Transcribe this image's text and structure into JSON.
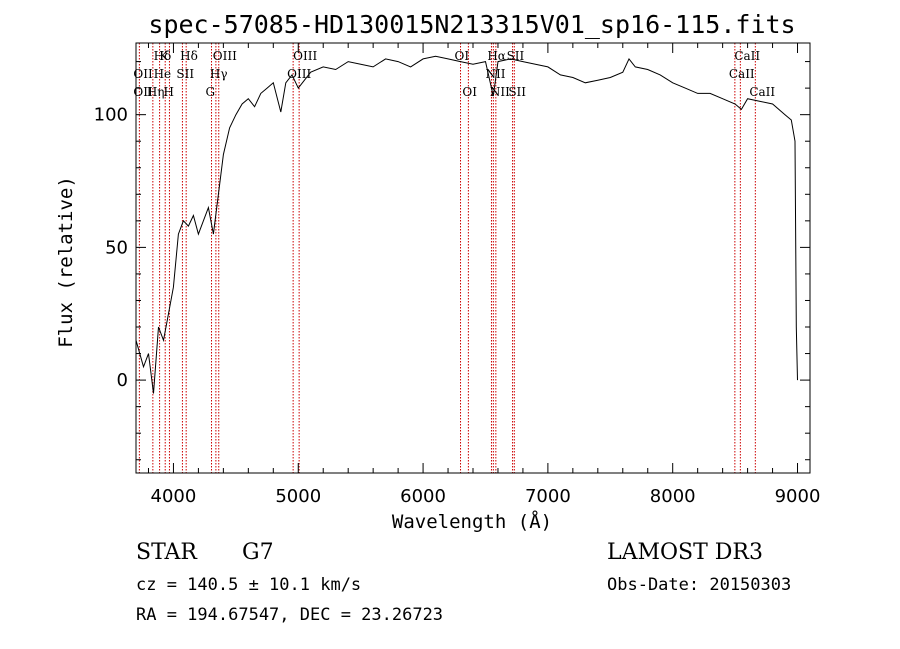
{
  "colors": {
    "axes": "#000000",
    "spectrum": "#000000",
    "lines": "#cc0000",
    "background": "#ffffff"
  },
  "chart_data": {
    "type": "line",
    "title": "spec-57085-HD130015N213315V01_sp16-115.fits",
    "xlabel": "Wavelength (Å)",
    "ylabel": "Flux (relative)",
    "xlim": [
      3700,
      9100
    ],
    "ylim": [
      -35,
      127
    ],
    "x_ticks": [
      4000,
      5000,
      6000,
      7000,
      8000,
      9000
    ],
    "x_tick_labels": [
      "4000",
      "5000",
      "6000",
      "7000",
      "8000",
      "9000"
    ],
    "y_ticks": [
      0,
      50,
      100
    ],
    "y_tick_labels": [
      "0",
      "50",
      "100"
    ],
    "grid": false,
    "legend": "none",
    "series": [
      {
        "x": [
          3700,
          3760,
          3800,
          3840,
          3880,
          3920,
          3960,
          4000,
          4040,
          4080,
          4120,
          4160,
          4200,
          4240,
          4280,
          4320,
          4360,
          4400,
          4450,
          4500,
          4550,
          4600,
          4650,
          4700,
          4750,
          4800,
          4860,
          4900,
          4950,
          5000,
          5100,
          5200,
          5300,
          5400,
          5500,
          5600,
          5700,
          5800,
          5900,
          6000,
          6100,
          6200,
          6300,
          6400,
          6500,
          6563,
          6600,
          6700,
          6800,
          6900,
          7000,
          7100,
          7200,
          7300,
          7400,
          7500,
          7600,
          7650,
          7700,
          7800,
          7900,
          8000,
          8100,
          8200,
          8300,
          8400,
          8500,
          8550,
          8600,
          8700,
          8800,
          8900,
          8950,
          8980,
          8990,
          9000
        ],
        "y": [
          15,
          5,
          10,
          -5,
          20,
          15,
          25,
          35,
          55,
          60,
          58,
          62,
          55,
          60,
          65,
          55,
          70,
          85,
          95,
          100,
          104,
          106,
          103,
          108,
          110,
          112,
          101,
          112,
          115,
          110,
          116,
          118,
          117,
          120,
          119,
          118,
          121,
          120,
          118,
          121,
          122,
          121,
          120,
          119,
          120,
          107,
          120,
          121,
          120,
          119,
          118,
          115,
          114,
          112,
          113,
          114,
          116,
          121,
          118,
          117,
          115,
          112,
          110,
          108,
          108,
          106,
          104,
          102,
          106,
          105,
          104,
          100,
          98,
          90,
          20,
          0
        ]
      }
    ],
    "line_markers": [
      {
        "label": "Hδ",
        "x": 3889
      },
      {
        "label": "K",
        "x": 3934
      },
      {
        "label": "Hδ",
        "x": 4102
      },
      {
        "label": "OIII",
        "x": 4363
      },
      {
        "label": "OIII",
        "x": 5007
      },
      {
        "label": "OI",
        "x": 6300
      },
      {
        "label": "Hα",
        "x": 6563
      },
      {
        "label": "SII",
        "x": 6717
      },
      {
        "label": "CaII",
        "x": 8542
      },
      {
        "label": "OII",
        "x": 3727
      },
      {
        "label": "He",
        "x": 3889
      },
      {
        "label": "SII",
        "x": 4072
      },
      {
        "label": "Hγ",
        "x": 4340
      },
      {
        "label": "OIII",
        "x": 4959
      },
      {
        "label": "NII",
        "x": 6548
      },
      {
        "label": "CaII",
        "x": 8498
      },
      {
        "label": "OII",
        "x": 3727
      },
      {
        "label": "Hη",
        "x": 3835
      },
      {
        "label": "H",
        "x": 3968
      },
      {
        "label": "G",
        "x": 4305
      },
      {
        "label": "OI",
        "x": 6363
      },
      {
        "label": "NII",
        "x": 6583
      },
      {
        "label": "SII",
        "x": 6731
      },
      {
        "label": "CaII",
        "x": 8662
      }
    ]
  },
  "info": {
    "object_class": "STAR",
    "subclass": "G7",
    "survey": "LAMOST DR3",
    "redshift": "cz = 140.5 ± 10.1 km/s",
    "obs_date": "Obs-Date: 20150303",
    "coords": "RA = 194.67547, DEC =  23.26723"
  }
}
